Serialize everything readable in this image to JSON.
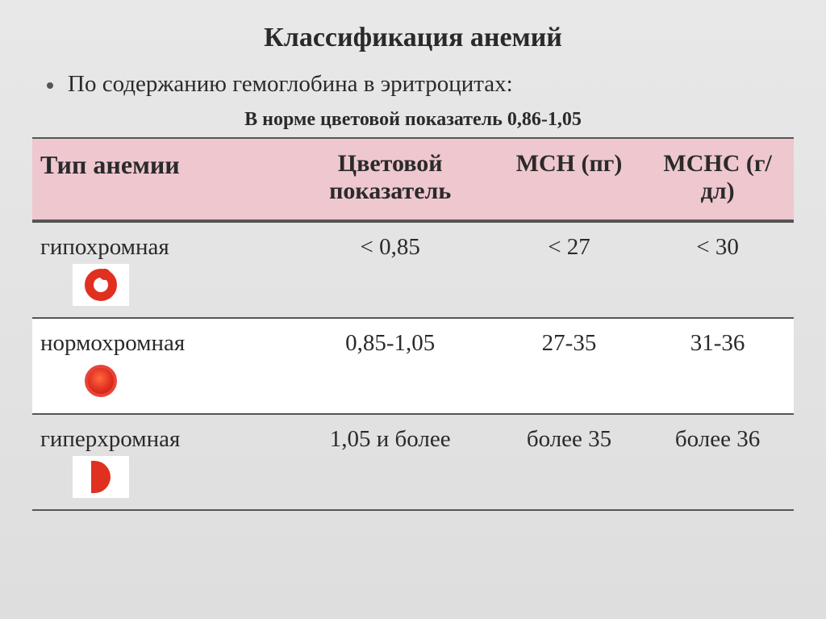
{
  "title": "Классификация анемий",
  "bullet": "По содержанию гемоглобина в эритроцитах:",
  "subnote": "В норме цветовой показатель 0,86-1,05",
  "table": {
    "headers": {
      "type": "Тип анемии",
      "cp": "Цветовой показатель",
      "mch": "MCH (пг)",
      "mchc": "MCHC (г/дл)"
    },
    "rows": [
      {
        "name": "гипохромная",
        "icon": "ring",
        "cp": "< 0,85",
        "mch": "< 27",
        "mchc": "< 30"
      },
      {
        "name": "нормохромная",
        "icon": "solid",
        "cp": "0,85-1,05",
        "mch": "27-35",
        "mchc": "31-36"
      },
      {
        "name": "гиперхромная",
        "icon": "halfD",
        "cp": "1,05 и более",
        "mch": "более 35",
        "mchc": "более 36"
      }
    ],
    "header_bg": "#eec7cf",
    "border_color": "#555555",
    "alt_row_bg": "#ffffff",
    "icon_color": "#e03020"
  },
  "background_gradient": [
    "#e8e8e8",
    "#dedede"
  ],
  "title_fontsize": 34,
  "body_fontsize": 29,
  "subnote_fontsize": 24
}
